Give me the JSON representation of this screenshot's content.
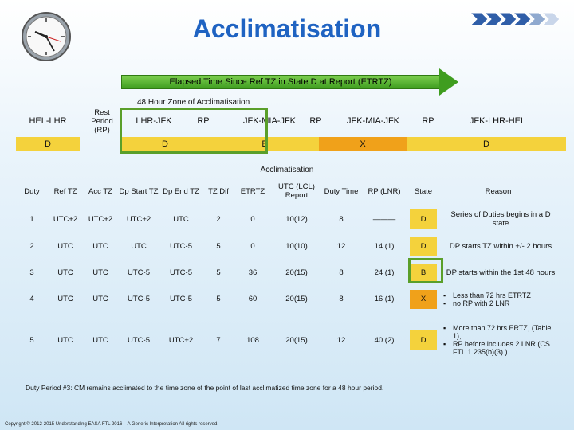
{
  "title": "Acclimatisation",
  "elapsed_bar_label": "Elapsed Time Since Ref TZ in State D at Report (ETRTZ)",
  "zone_label": "48 Hour Zone of Acclimatisation",
  "duty_sequence": [
    {
      "label": "HEL-LHR",
      "state": "D"
    },
    {
      "label": "Rest Period (RP)",
      "state": ""
    },
    {
      "label": "LHR-JFK",
      "state": "D"
    },
    {
      "label": "RP",
      "state": ""
    },
    {
      "label": "JFK-MIA-JFK",
      "state": "B"
    },
    {
      "label": "RP",
      "state": ""
    },
    {
      "label": "JFK-MIA-JFK",
      "state": "X"
    },
    {
      "label": "RP",
      "state": ""
    },
    {
      "label": "JFK-LHR-HEL",
      "state": "D"
    }
  ],
  "band_colors": {
    "D": "#f4d23c",
    "B": "#f4d23c",
    "X": "#f0a11a"
  },
  "table_title": "Acclimatisation",
  "headers": [
    "Duty",
    "Ref TZ",
    "Acc TZ",
    "Dp Start TZ",
    "Dp End TZ",
    "TZ Dif",
    "ETRTZ",
    "UTC (LCL) Report",
    "Duty Time",
    "RP (LNR)",
    "State",
    "Reason"
  ],
  "rows": [
    {
      "cells": [
        "1",
        "UTC+2",
        "UTC+2",
        "UTC+2",
        "UTC",
        "2",
        "0",
        "10(12)",
        "8",
        "———",
        "D"
      ],
      "reason": [
        "Series of Duties begins in a D state"
      ],
      "reason_bullets": false
    },
    {
      "cells": [
        "2",
        "UTC",
        "UTC",
        "UTC",
        "UTC-5",
        "5",
        "0",
        "10(10)",
        "12",
        "14 (1)",
        "D"
      ],
      "reason": [
        "DP starts TZ within +/- 2 hours"
      ],
      "reason_bullets": false
    },
    {
      "cells": [
        "3",
        "UTC",
        "UTC",
        "UTC-5",
        "UTC-5",
        "5",
        "36",
        "20(15)",
        "8",
        "24 (1)",
        "B"
      ],
      "reason": [
        "DP starts within the 1st 48 hours"
      ],
      "reason_bullets": false
    },
    {
      "cells": [
        "4",
        "UTC",
        "UTC",
        "UTC-5",
        "UTC-5",
        "5",
        "60",
        "20(15)",
        "8",
        "16 (1)",
        "X"
      ],
      "reason": [
        "Less than 72 hrs ETRTZ",
        "no RP with 2 LNR"
      ],
      "reason_bullets": true
    },
    {
      "cells": [
        "5",
        "UTC",
        "UTC",
        "UTC-5",
        "UTC+2",
        "7",
        "108",
        "20(15)",
        "12",
        "40 (2)",
        "D"
      ],
      "reason": [
        "More than 72 hrs ERTZ, (Table 1),",
        "RP before includes 2 LNR (CS FTL.1.235(b)(3) )"
      ],
      "reason_bullets": true
    }
  ],
  "state_colors": {
    "D": "#f4d23c",
    "B": "#f4d23c",
    "X": "#f0a11a"
  },
  "note": "Duty Period #3: CM remains acclimated to the time zone of the point of last acclimatized time zone for a 48 hour period.",
  "copyright": "Copyright © 2012-2015 Understanding EASA FTL 2016 – A Generic Interpretation All rights reserved."
}
